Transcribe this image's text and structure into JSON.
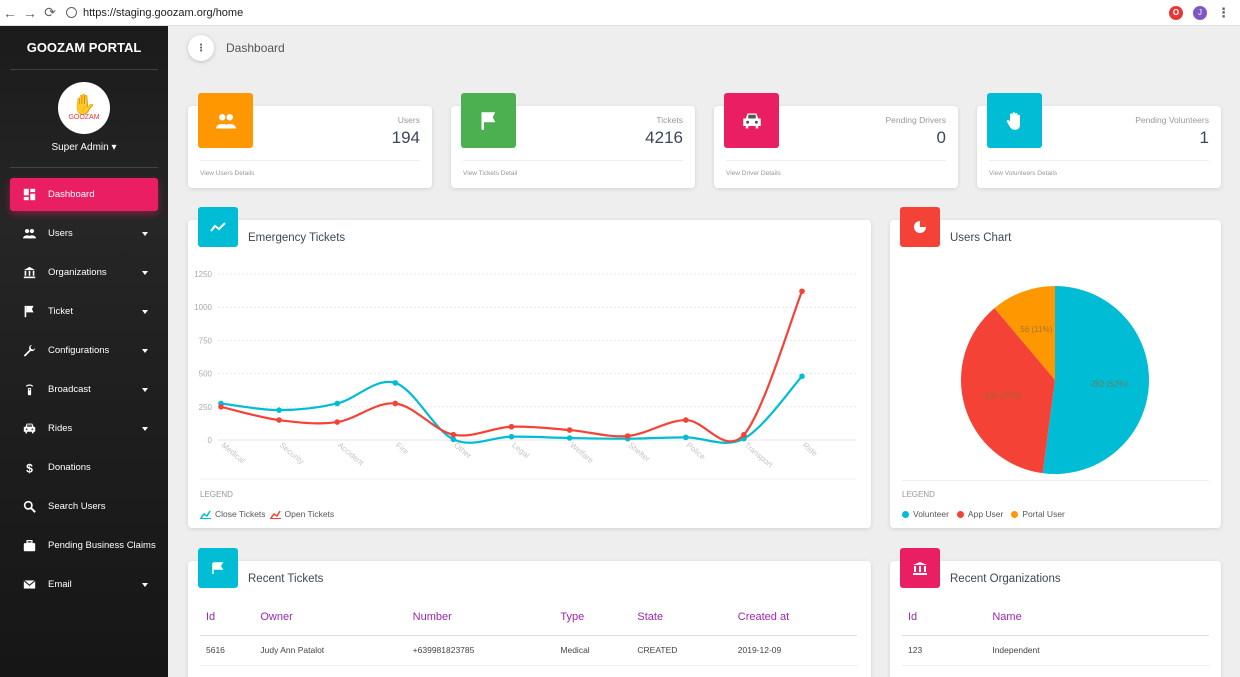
{
  "browser": {
    "url": "https://staging.goozam.org/home",
    "user_initial": "J"
  },
  "sidebar": {
    "brand": "GOOZAM PORTAL",
    "logo_text": "GOOZAM",
    "role": "Super Admin",
    "items": [
      {
        "label": "Dashboard",
        "icon": "dashboard-icon",
        "active": true,
        "caret": false
      },
      {
        "label": "Users",
        "icon": "people-icon",
        "active": false,
        "caret": true
      },
      {
        "label": "Organizations",
        "icon": "bank-icon",
        "active": false,
        "caret": true
      },
      {
        "label": "Ticket",
        "icon": "flag-icon",
        "active": false,
        "caret": true
      },
      {
        "label": "Configurations",
        "icon": "wrench-icon",
        "active": false,
        "caret": true
      },
      {
        "label": "Broadcast",
        "icon": "broadcast-icon",
        "active": false,
        "caret": true
      },
      {
        "label": "Rides",
        "icon": "car-icon",
        "active": false,
        "caret": true
      },
      {
        "label": "Donations",
        "icon": "dollar-icon",
        "active": false,
        "caret": false
      },
      {
        "label": "Search Users",
        "icon": "search-icon",
        "active": false,
        "caret": false
      },
      {
        "label": "Pending Business Claims",
        "icon": "briefcase-icon",
        "active": false,
        "caret": false
      },
      {
        "label": "Email",
        "icon": "mail-icon",
        "active": false,
        "caret": true
      }
    ]
  },
  "header": {
    "title": "Dashboard"
  },
  "stats": [
    {
      "label": "Users",
      "value": "194",
      "footer": "View Users Details",
      "color": "#ff9800",
      "icon": "people-icon"
    },
    {
      "label": "Tickets",
      "value": "4216",
      "footer": "View Tickets Detail",
      "color": "#4caf50",
      "icon": "flag-icon"
    },
    {
      "label": "Pending Drivers",
      "value": "0",
      "footer": "View Driver Details",
      "color": "#e91e63",
      "icon": "car-icon"
    },
    {
      "label": "Pending Volunteers",
      "value": "1",
      "footer": "View Volunteers Details",
      "color": "#00bcd4",
      "icon": "hand-icon"
    }
  ],
  "emergency": {
    "title": "Emergency Tickets",
    "legend_title": "LEGEND",
    "legend": [
      "Close Tickets",
      "Open Tickets"
    ]
  },
  "users_chart": {
    "title": "Users Chart",
    "legend_title": "LEGEND",
    "legend": [
      "Volunteer",
      "App User",
      "Portal User"
    ]
  },
  "chart_data": [
    {
      "type": "line",
      "title": "Emergency Tickets",
      "categories": [
        "Medical",
        "Security",
        "Accident",
        "Fire",
        "Other",
        "Legal",
        "Welfare",
        "Shelter",
        "Police",
        "Transport",
        "Ride"
      ],
      "ylim": [
        0,
        1250
      ],
      "yticks": [
        0,
        250,
        500,
        750,
        1000,
        1250
      ],
      "series": [
        {
          "name": "Close Tickets",
          "color": "#00bcd4",
          "values": [
            275,
            225,
            275,
            430,
            5,
            25,
            15,
            10,
            20,
            10,
            480
          ]
        },
        {
          "name": "Open Tickets",
          "color": "#f44336",
          "values": [
            250,
            150,
            135,
            275,
            40,
            100,
            75,
            30,
            150,
            40,
            1120
          ]
        }
      ]
    },
    {
      "type": "pie",
      "title": "Users Chart",
      "slices": [
        {
          "name": "Volunteer",
          "value": 262,
          "label": "262 (52%)",
          "color": "#00bcd4"
        },
        {
          "name": "App User",
          "value": 185,
          "label": "185 (37%)",
          "color": "#f44336"
        },
        {
          "name": "Portal User",
          "value": 56,
          "label": "56 (11%)",
          "color": "#ff9800"
        }
      ]
    }
  ],
  "recent_tickets": {
    "title": "Recent Tickets",
    "columns": [
      "Id",
      "Owner",
      "Number",
      "Type",
      "State",
      "Created at"
    ],
    "rows": [
      [
        "5616",
        "Judy Ann Patalot",
        "+639981823785",
        "Medical",
        "CREATED",
        "2019-12-09"
      ]
    ]
  },
  "recent_orgs": {
    "title": "Recent Organizations",
    "columns": [
      "Id",
      "Name"
    ],
    "rows": [
      [
        "123",
        "Independent"
      ]
    ]
  }
}
